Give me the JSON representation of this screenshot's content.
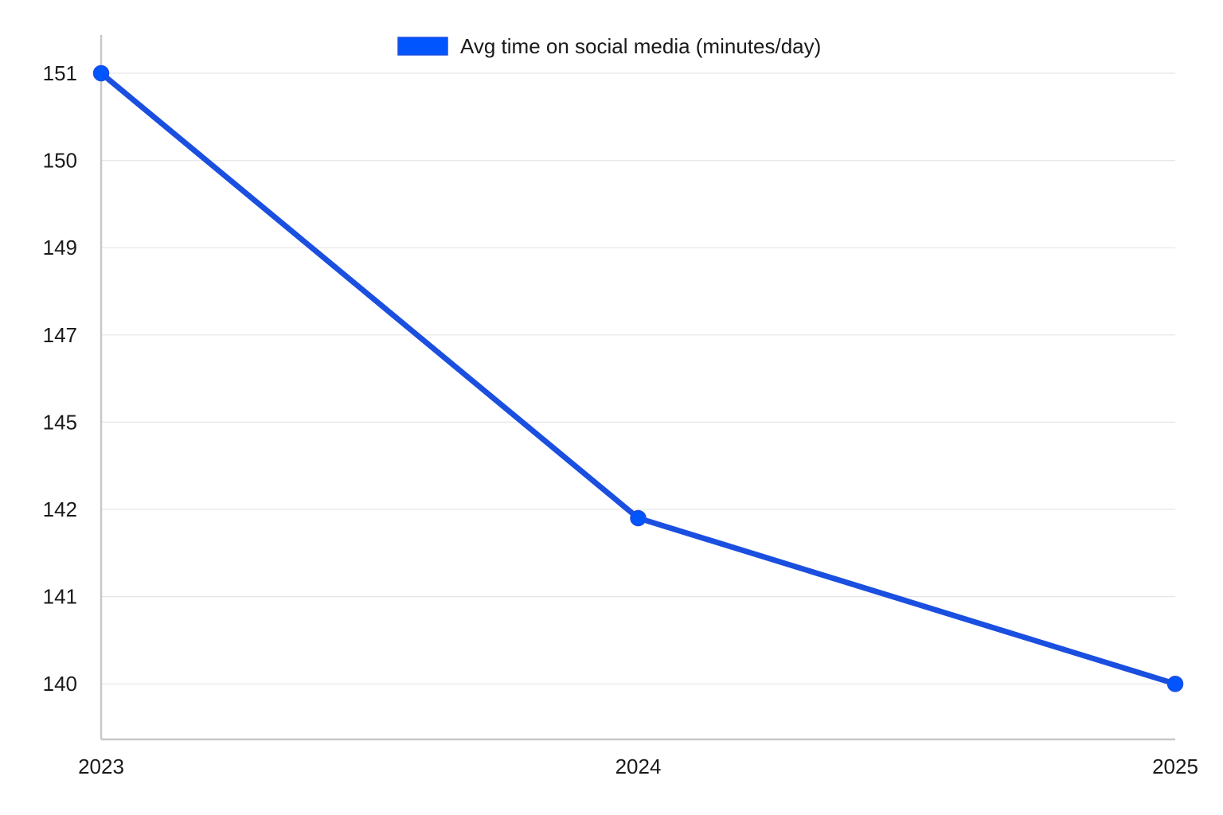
{
  "chart_data": {
    "type": "line",
    "x": [
      "2023",
      "2024",
      "2025"
    ],
    "y_tick_labels": [
      "151",
      "150",
      "149",
      "147",
      "145",
      "142",
      "141",
      "140"
    ],
    "series": [
      {
        "name": "Avg time on social media (minutes/day)",
        "values": [
          151,
          141.9,
          140
        ],
        "color": "#0055ff"
      }
    ],
    "legend": {
      "position": "top-center"
    },
    "grid": true,
    "colors": {
      "line": "#0055ff",
      "line_dark": "#1a4fe0",
      "axis": "#c8c8c8",
      "grid": "#e6e6e6",
      "text": "#1a1a1a"
    }
  }
}
